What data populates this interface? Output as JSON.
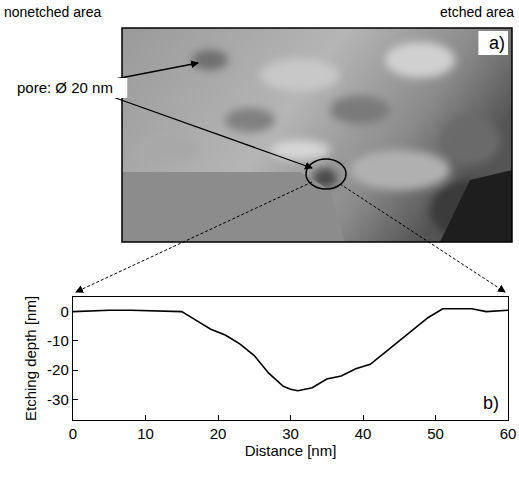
{
  "image_panel": {
    "left_label": "nonetched area",
    "right_label": "etched area",
    "annotation": "pore: Ø 20 nm",
    "panel_label": "a)"
  },
  "chart_data": {
    "type": "line",
    "panel_label": "b)",
    "xlabel": "Distance [nm]",
    "ylabel": "Etching depth [nm]",
    "x": [
      0,
      2,
      5,
      8,
      10,
      12,
      15,
      17,
      19,
      21,
      23,
      25,
      27,
      29,
      30,
      31,
      33,
      35,
      37,
      39,
      41,
      43,
      45,
      47,
      49,
      51,
      53,
      55,
      57,
      60
    ],
    "values": [
      0,
      0.3,
      0.5,
      0.5,
      0.3,
      0.3,
      0,
      -3,
      -6,
      -8,
      -11,
      -15,
      -21,
      -25.5,
      -26.5,
      -27,
      -26,
      -23,
      -22,
      -19.5,
      -18,
      -14,
      -10,
      -6,
      -2,
      1,
      1,
      1,
      0,
      0.5
    ],
    "color": "#000000",
    "xlim": [
      0,
      60
    ],
    "xticks": [
      0,
      10,
      20,
      30,
      40,
      50,
      60
    ],
    "ylim": [
      -37,
      5
    ],
    "yticks": [
      -30,
      -20,
      -10,
      0
    ],
    "grid": false
  }
}
